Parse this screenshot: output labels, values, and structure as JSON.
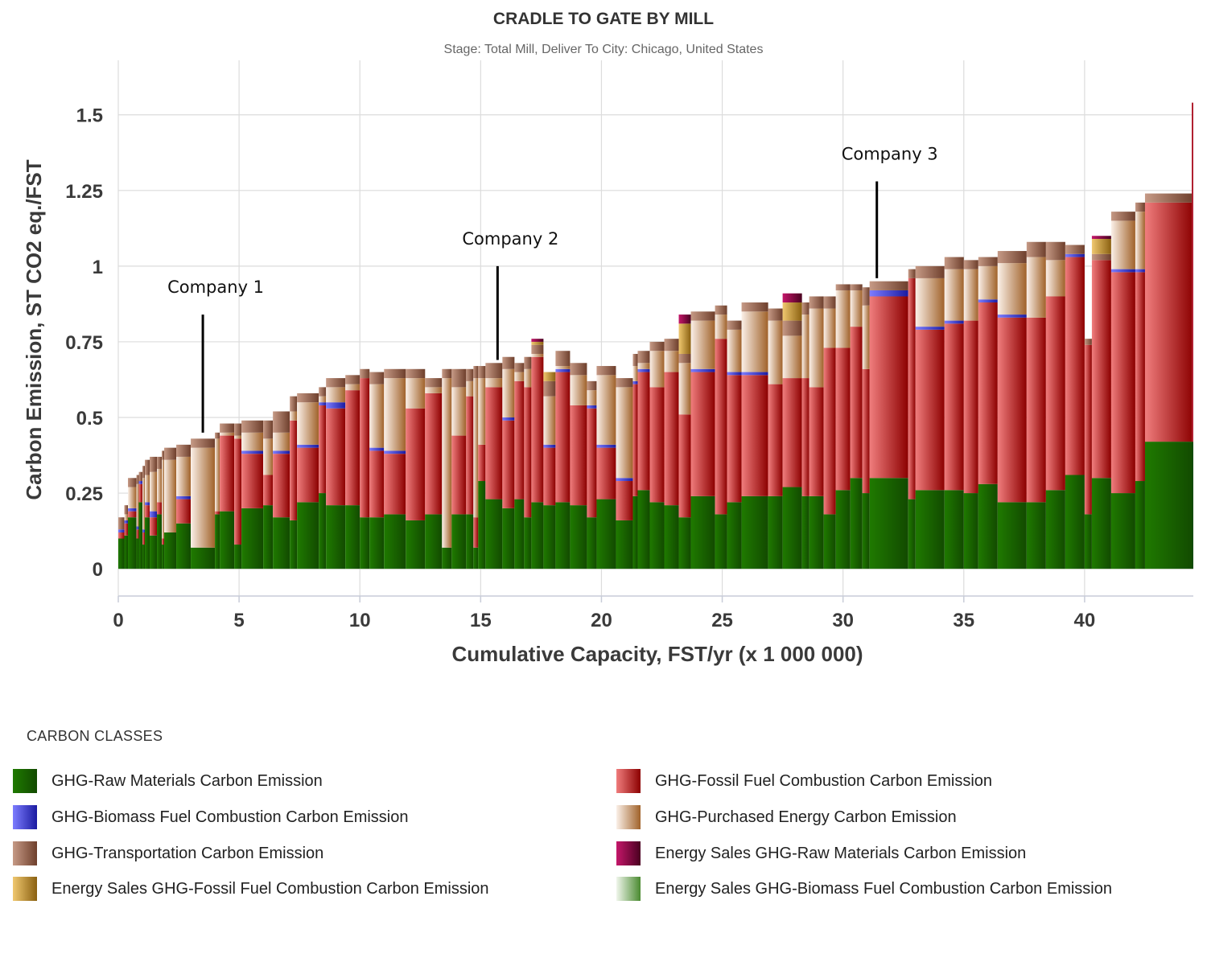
{
  "chart_data": {
    "type": "bar",
    "subtype": "stacked variable-width (cost-curve style)",
    "title": "CRADLE TO GATE BY MILL",
    "subtitle": "Stage: Total Mill, Deliver To City: Chicago, United States",
    "xlabel": "Cumulative Capacity, FST/yr (x 1 000 000)",
    "ylabel": "Carbon Emission, ST CO2 eq./FST",
    "xlim": [
      0,
      44.5
    ],
    "ylim": [
      -0.09,
      1.68
    ],
    "x_ticks": [
      0,
      5,
      10,
      15,
      20,
      25,
      30,
      35,
      40
    ],
    "y_ticks": [
      0,
      0.25,
      0.5,
      0.75,
      1,
      1.25,
      1.5
    ],
    "y_tick_labels": [
      "0",
      "0.25",
      "0.5",
      "0.75",
      "1",
      "1.25",
      "1.5"
    ],
    "grid": true,
    "stack_order": [
      "raw",
      "fossil",
      "biomass",
      "purchased",
      "transport",
      "es_fossil",
      "es_raw"
    ],
    "series": [
      {
        "key": "raw",
        "name": "GHG-Raw Materials Carbon Emission",
        "color": "#1f7a00",
        "color_dark": "#124a00"
      },
      {
        "key": "fossil",
        "name": "GHG-Fossil Fuel Combustion Carbon Emission",
        "color": "#f07d7d",
        "color_dark": "#8c0000"
      },
      {
        "key": "biomass",
        "name": "GHG-Biomass Fuel Combustion Carbon Emission",
        "color": "#7d7dff",
        "color_dark": "#1a1aa0"
      },
      {
        "key": "purchased",
        "name": "GHG-Purchased Energy Carbon Emission",
        "color": "#fbf0e8",
        "color_dark": "#a0622a"
      },
      {
        "key": "transport",
        "name": "GHG-Transportation Carbon Emission",
        "color": "#c69a86",
        "color_dark": "#6e3f2c"
      },
      {
        "key": "es_raw",
        "name": "Energy Sales GHG-Raw Materials Carbon Emission",
        "color": "#c4176a",
        "color_dark": "#4a0020"
      },
      {
        "key": "es_fossil",
        "name": "Energy Sales GHG-Fossil Fuel Combustion Carbon Emission",
        "color": "#f0c870",
        "color_dark": "#8a6010"
      },
      {
        "key": "es_biomass",
        "name": "Energy Sales GHG-Biomass Fuel Combustion Carbon Emission",
        "color": "#f0f6ec",
        "color_dark": "#4a8a30"
      }
    ],
    "columns": [
      "x0",
      "x1",
      "raw",
      "fossil",
      "biomass",
      "purchased",
      "transport",
      "es_fossil",
      "es_raw"
    ],
    "mills": [
      [
        0.0,
        0.25,
        0.1,
        0.02,
        0.01,
        0.0,
        0.04,
        0,
        0
      ],
      [
        0.25,
        0.4,
        0.11,
        0.04,
        0.01,
        0.02,
        0.03,
        0,
        0
      ],
      [
        0.4,
        0.75,
        0.17,
        0.02,
        0.01,
        0.07,
        0.03,
        0,
        0
      ],
      [
        0.75,
        0.85,
        0.1,
        0.03,
        0.01,
        0.14,
        0.03,
        0,
        0
      ],
      [
        0.85,
        1.0,
        0.22,
        0.06,
        0.01,
        0.0,
        0.03,
        0,
        0
      ],
      [
        1.0,
        1.1,
        0.08,
        0.04,
        0.01,
        0.17,
        0.04,
        0,
        0
      ],
      [
        1.1,
        1.3,
        0.17,
        0.04,
        0.01,
        0.09,
        0.05,
        0,
        0
      ],
      [
        1.3,
        1.6,
        0.11,
        0.06,
        0.02,
        0.13,
        0.05,
        0,
        0
      ],
      [
        1.6,
        1.8,
        0.18,
        0.04,
        0.0,
        0.11,
        0.04,
        0,
        0
      ],
      [
        1.8,
        1.9,
        0.08,
        0.02,
        0.0,
        0.26,
        0.03,
        0,
        0
      ],
      [
        1.9,
        2.4,
        0.12,
        0.0,
        0.0,
        0.24,
        0.04,
        0,
        0
      ],
      [
        2.4,
        3.0,
        0.15,
        0.08,
        0.01,
        0.13,
        0.04,
        0,
        0
      ],
      [
        3.0,
        4.0,
        0.07,
        0.0,
        0.0,
        0.33,
        0.03,
        0,
        0
      ],
      [
        4.0,
        4.2,
        0.18,
        0.01,
        0.0,
        0.24,
        0.02,
        0,
        0
      ],
      [
        4.2,
        4.8,
        0.19,
        0.25,
        0.0,
        0.01,
        0.03,
        0,
        0
      ],
      [
        4.8,
        5.1,
        0.08,
        0.35,
        0.0,
        0.01,
        0.04,
        0,
        0
      ],
      [
        5.1,
        6.0,
        0.2,
        0.18,
        0.01,
        0.06,
        0.04,
        0,
        0
      ],
      [
        6.0,
        6.4,
        0.21,
        0.1,
        0.0,
        0.12,
        0.06,
        0,
        0
      ],
      [
        6.4,
        7.1,
        0.17,
        0.21,
        0.01,
        0.06,
        0.07,
        0,
        0
      ],
      [
        7.1,
        7.4,
        0.16,
        0.33,
        0.0,
        0.03,
        0.05,
        0,
        0
      ],
      [
        7.4,
        8.3,
        0.22,
        0.18,
        0.01,
        0.14,
        0.03,
        0,
        0
      ],
      [
        8.3,
        8.6,
        0.25,
        0.29,
        0.01,
        0.02,
        0.03,
        0,
        0
      ],
      [
        8.6,
        9.4,
        0.21,
        0.32,
        0.02,
        0.05,
        0.03,
        0,
        0
      ],
      [
        9.4,
        10.0,
        0.21,
        0.38,
        0.0,
        0.02,
        0.03,
        0,
        0
      ],
      [
        10.0,
        10.4,
        0.17,
        0.46,
        0.0,
        0.0,
        0.03,
        0,
        0
      ],
      [
        10.4,
        11.0,
        0.17,
        0.22,
        0.01,
        0.21,
        0.04,
        0,
        0
      ],
      [
        11.0,
        11.9,
        0.18,
        0.2,
        0.01,
        0.24,
        0.03,
        0,
        0
      ],
      [
        11.9,
        12.7,
        0.16,
        0.37,
        0.0,
        0.1,
        0.03,
        0,
        0
      ],
      [
        12.7,
        13.4,
        0.18,
        0.4,
        0.0,
        0.02,
        0.03,
        0,
        0
      ],
      [
        13.4,
        13.8,
        0.07,
        0.0,
        0.0,
        0.56,
        0.03,
        0,
        0
      ],
      [
        13.8,
        14.4,
        0.18,
        0.26,
        0.0,
        0.16,
        0.06,
        0,
        0
      ],
      [
        14.4,
        14.7,
        0.18,
        0.39,
        0.0,
        0.05,
        0.04,
        0,
        0
      ],
      [
        14.7,
        14.9,
        0.07,
        0.1,
        0.0,
        0.46,
        0.04,
        0,
        0
      ],
      [
        14.9,
        15.2,
        0.29,
        0.12,
        0.0,
        0.22,
        0.04,
        0,
        0
      ],
      [
        15.2,
        15.9,
        0.23,
        0.37,
        0.0,
        0.03,
        0.05,
        0,
        0
      ],
      [
        15.9,
        16.4,
        0.2,
        0.29,
        0.01,
        0.16,
        0.04,
        0,
        0
      ],
      [
        16.4,
        16.8,
        0.23,
        0.39,
        0.0,
        0.03,
        0.03,
        0,
        0
      ],
      [
        16.8,
        17.1,
        0.17,
        0.43,
        0.0,
        0.06,
        0.04,
        0,
        0
      ],
      [
        17.1,
        17.6,
        0.22,
        0.48,
        0.0,
        0.01,
        0.03,
        0.01,
        0.01
      ],
      [
        17.6,
        18.1,
        0.21,
        0.19,
        0.01,
        0.16,
        0.05,
        0.03,
        0
      ],
      [
        18.1,
        18.7,
        0.22,
        0.43,
        0.01,
        0.01,
        0.05,
        0,
        0
      ],
      [
        18.7,
        19.4,
        0.21,
        0.33,
        0.0,
        0.1,
        0.04,
        0,
        0
      ],
      [
        19.4,
        19.8,
        0.17,
        0.36,
        0.01,
        0.05,
        0.03,
        0,
        0
      ],
      [
        19.8,
        20.6,
        0.23,
        0.17,
        0.01,
        0.23,
        0.03,
        0,
        0
      ],
      [
        20.6,
        21.3,
        0.16,
        0.13,
        0.01,
        0.3,
        0.03,
        0,
        0
      ],
      [
        21.3,
        21.5,
        0.24,
        0.37,
        0.01,
        0.05,
        0.04,
        0,
        0
      ],
      [
        21.5,
        22.0,
        0.26,
        0.39,
        0.01,
        0.02,
        0.04,
        0,
        0
      ],
      [
        22.0,
        22.6,
        0.22,
        0.38,
        0.0,
        0.12,
        0.03,
        0,
        0
      ],
      [
        22.6,
        23.2,
        0.21,
        0.44,
        0.0,
        0.07,
        0.04,
        0,
        0
      ],
      [
        23.2,
        23.7,
        0.17,
        0.34,
        0.0,
        0.17,
        0.03,
        0.1,
        0.03
      ],
      [
        23.7,
        24.7,
        0.24,
        0.41,
        0.01,
        0.16,
        0.03,
        0,
        0
      ],
      [
        24.7,
        25.2,
        0.18,
        0.58,
        0.0,
        0.08,
        0.03,
        0,
        0
      ],
      [
        25.2,
        25.8,
        0.22,
        0.42,
        0.01,
        0.14,
        0.03,
        0,
        0
      ],
      [
        25.8,
        26.9,
        0.24,
        0.4,
        0.01,
        0.2,
        0.03,
        0,
        0
      ],
      [
        26.9,
        27.5,
        0.24,
        0.37,
        0.0,
        0.21,
        0.04,
        0,
        0
      ],
      [
        27.5,
        28.3,
        0.27,
        0.36,
        0.0,
        0.14,
        0.05,
        0.06,
        0.03
      ],
      [
        28.3,
        28.6,
        0.24,
        0.39,
        0.0,
        0.21,
        0.04,
        0,
        0
      ],
      [
        28.6,
        29.2,
        0.24,
        0.36,
        0.0,
        0.26,
        0.04,
        0,
        0
      ],
      [
        29.2,
        29.7,
        0.18,
        0.55,
        0.0,
        0.13,
        0.04,
        0,
        0
      ],
      [
        29.7,
        30.3,
        0.26,
        0.47,
        0.0,
        0.19,
        0.02,
        0,
        0
      ],
      [
        30.3,
        30.8,
        0.3,
        0.5,
        0.0,
        0.12,
        0.02,
        0,
        0
      ],
      [
        30.8,
        31.1,
        0.25,
        0.41,
        0.0,
        0.21,
        0.06,
        0,
        0
      ],
      [
        31.1,
        32.7,
        0.3,
        0.6,
        0.02,
        0.0,
        0.03,
        0,
        0
      ],
      [
        32.7,
        33.0,
        0.23,
        0.73,
        0.0,
        0.0,
        0.03,
        0,
        0
      ],
      [
        33.0,
        34.2,
        0.26,
        0.53,
        0.01,
        0.16,
        0.04,
        0,
        0
      ],
      [
        34.2,
        35.0,
        0.26,
        0.55,
        0.01,
        0.17,
        0.04,
        0,
        0
      ],
      [
        35.0,
        35.6,
        0.25,
        0.57,
        0.0,
        0.17,
        0.03,
        0,
        0
      ],
      [
        35.6,
        36.4,
        0.28,
        0.6,
        0.01,
        0.11,
        0.03,
        0,
        0
      ],
      [
        36.4,
        37.6,
        0.22,
        0.61,
        0.01,
        0.17,
        0.04,
        0,
        0
      ],
      [
        37.6,
        38.4,
        0.22,
        0.61,
        0.0,
        0.2,
        0.05,
        0,
        0
      ],
      [
        38.4,
        39.2,
        0.26,
        0.64,
        0.0,
        0.12,
        0.06,
        0,
        0
      ],
      [
        39.2,
        40.0,
        0.31,
        0.72,
        0.01,
        0.0,
        0.03,
        0,
        0
      ],
      [
        40.0,
        40.3,
        0.18,
        0.56,
        0.0,
        0.0,
        0.02,
        0,
        0
      ],
      [
        40.3,
        41.1,
        0.3,
        0.72,
        0.0,
        0.0,
        0.02,
        0.05,
        0.01
      ],
      [
        41.1,
        42.1,
        0.25,
        0.73,
        0.01,
        0.16,
        0.03,
        0,
        0
      ],
      [
        42.1,
        42.5,
        0.29,
        0.69,
        0.01,
        0.19,
        0.03,
        0,
        0
      ],
      [
        42.5,
        44.5,
        0.42,
        0.79,
        0.0,
        0.0,
        0.03,
        0,
        0
      ]
    ],
    "spike": {
      "x": 44.5,
      "value": 1.54
    },
    "annotations": [
      {
        "text": "Company 1",
        "x": 3.5,
        "y_top": 0.84,
        "y_bottom": 0.45
      },
      {
        "text": "Company 2",
        "x": 15.7,
        "y_top": 1.0,
        "y_bottom": 0.69
      },
      {
        "text": "Company 3",
        "x": 31.4,
        "y_top": 1.28,
        "y_bottom": 0.96
      }
    ]
  },
  "legend": {
    "title": "CARBON CLASSES",
    "items": [
      "GHG-Raw Materials Carbon Emission",
      "GHG-Fossil Fuel Combustion Carbon Emission",
      "GHG-Biomass Fuel Combustion Carbon Emission",
      "GHG-Purchased Energy Carbon Emission",
      "GHG-Transportation Carbon Emission",
      "Energy Sales GHG-Raw Materials Carbon Emission",
      "Energy Sales GHG-Fossil Fuel Combustion Carbon Emission",
      "Energy Sales GHG-Biomass Fuel Combustion Carbon Emission"
    ]
  }
}
